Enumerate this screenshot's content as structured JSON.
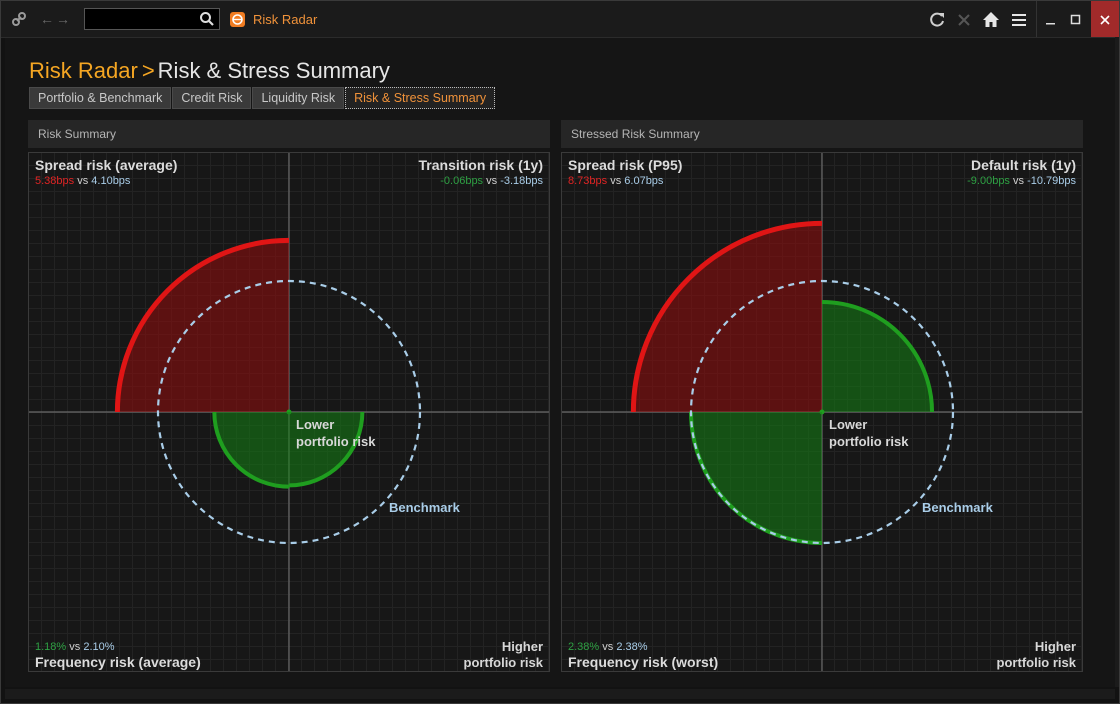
{
  "titlebar": {
    "app_name": "Risk Radar",
    "search_value": "",
    "icons": [
      "link-icon",
      "back-icon",
      "forward-icon",
      "search-icon",
      "refresh-icon",
      "close-tab-icon",
      "home-icon",
      "menu-icon",
      "minimize-icon",
      "maximize-icon",
      "close-icon"
    ]
  },
  "breadcrumb": {
    "root": "Risk Radar",
    "separator": ">",
    "current": "Risk & Stress Summary"
  },
  "tabs": [
    {
      "label": "Portfolio & Benchmark",
      "active": false
    },
    {
      "label": "Credit Risk",
      "active": false
    },
    {
      "label": "Liquidity Risk",
      "active": false
    },
    {
      "label": "Risk & Stress Summary",
      "active": true
    }
  ],
  "colors": {
    "accent": "#f5a623",
    "portfolio_worse": "#e01515",
    "portfolio_better": "#1f9e1f",
    "benchmark": "#a9cde8"
  },
  "panels": [
    {
      "header": "Risk Summary",
      "center_label_1": "Lower",
      "center_label_2": "portfolio risk",
      "benchmark_label": "Benchmark",
      "higher_label_1": "Higher",
      "higher_label_2": "portfolio risk",
      "quadrants": {
        "top_left": {
          "title": "Spread risk (average)",
          "portfolio": "5.38bps",
          "vs": "vs",
          "benchmark": "4.10bps",
          "status": "worse"
        },
        "top_right": {
          "title": "Transition risk (1y)",
          "portfolio": "-0.06bps",
          "vs": "vs",
          "benchmark": "-3.18bps",
          "status": "better"
        },
        "bottom_left": {
          "title": "Frequency risk (average)",
          "portfolio": "1.18%",
          "vs": "vs",
          "benchmark": "2.10%",
          "status": "better"
        }
      }
    },
    {
      "header": "Stressed Risk Summary",
      "center_label_1": "Lower",
      "center_label_2": "portfolio risk",
      "benchmark_label": "Benchmark",
      "higher_label_1": "Higher",
      "higher_label_2": "portfolio risk",
      "quadrants": {
        "top_left": {
          "title": "Spread risk (P95)",
          "portfolio": "8.73bps",
          "vs": "vs",
          "benchmark": "6.07bps",
          "status": "worse"
        },
        "top_right": {
          "title": "Default risk (1y)",
          "portfolio": "-9.00bps",
          "vs": "vs",
          "benchmark": "-10.79bps",
          "status": "better"
        },
        "bottom_left": {
          "title": "Frequency risk (worst)",
          "portfolio": "2.38%",
          "vs": "vs",
          "benchmark": "2.38%",
          "status": "equal"
        }
      }
    }
  ],
  "chart_data": [
    {
      "type": "radar-quadrant",
      "benchmark_radius": 1.0,
      "series": [
        {
          "name": "Benchmark",
          "values": [
            1.0,
            1.0,
            1.0,
            1.0
          ]
        },
        {
          "name": "Portfolio",
          "values": [
            1.31,
            0.0,
            0.56,
            0.57
          ]
        }
      ],
      "quadrant_order": [
        "top_left",
        "top_right",
        "bottom_right",
        "bottom_left"
      ]
    },
    {
      "type": "radar-quadrant",
      "benchmark_radius": 1.0,
      "series": [
        {
          "name": "Benchmark",
          "values": [
            1.0,
            1.0,
            1.0,
            1.0
          ]
        },
        {
          "name": "Portfolio",
          "values": [
            1.44,
            0.84,
            0.0,
            1.0
          ]
        }
      ],
      "quadrant_order": [
        "top_left",
        "top_right",
        "bottom_right",
        "bottom_left"
      ]
    }
  ]
}
